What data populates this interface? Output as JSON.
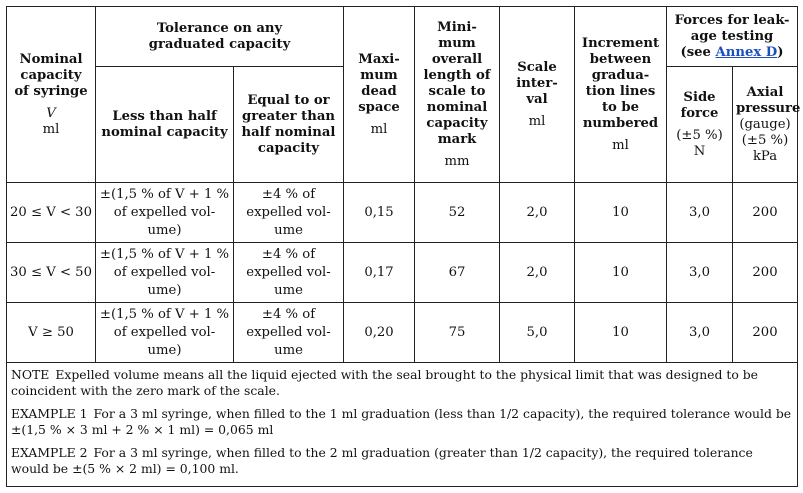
{
  "header": {
    "nominal": [
      "Nominal",
      "capacity",
      "of syringe"
    ],
    "nominal_v": "V",
    "nominal_unit": "ml",
    "tolerance_group": [
      "Tolerance on any",
      "graduated capacity"
    ],
    "less_half": [
      "Less than half",
      "nominal capacity"
    ],
    "equal_greater": [
      "Equal to or",
      "greater than",
      "half nominal",
      "capacity"
    ],
    "dead_space": [
      "Maxi-",
      "mum",
      "dead",
      "space"
    ],
    "dead_space_unit": "ml",
    "min_length": [
      "Mini-",
      "mum",
      "overall",
      "length of",
      "scale to",
      "nominal",
      "capacity",
      "mark"
    ],
    "min_length_unit": "mm",
    "scale_interval": [
      "Scale",
      "inter-",
      "val"
    ],
    "scale_interval_unit": "ml",
    "increment": [
      "Increment",
      "between",
      "gradua-",
      "tion lines",
      "to be",
      "numbered"
    ],
    "increment_unit": "ml",
    "forces_group": [
      "Forces for leak-",
      "age testing"
    ],
    "forces_see": "(see ",
    "forces_link": "Annex D",
    "forces_close": ")",
    "side_force": [
      "Side",
      "force"
    ],
    "side_force_tol": "(±5 %)",
    "side_force_unit": "N",
    "axial": [
      "Axial",
      "pressure"
    ],
    "axial_gauge": "(gauge)",
    "axial_tol": "(±5 %)",
    "axial_unit": "kPa"
  },
  "rows": [
    {
      "range": "20 ≤ V < 30",
      "less": [
        "±(1,5 % of V + 1 %",
        "of expelled vol-",
        "ume)"
      ],
      "equal": [
        "±4 % of",
        "expelled vol-",
        "ume"
      ],
      "dead_space": "0,15",
      "min_length": "52",
      "scale_interval": "2,0",
      "increment": "10",
      "side_force": "3,0",
      "axial": "200"
    },
    {
      "range": "30 ≤ V < 50",
      "less": [
        "±(1,5 % of V + 1 %",
        "of expelled vol-",
        "ume)"
      ],
      "equal": [
        "±4 % of",
        "expelled vol-",
        "ume"
      ],
      "dead_space": "0,17",
      "min_length": "67",
      "scale_interval": "2,0",
      "increment": "10",
      "side_force": "3,0",
      "axial": "200"
    },
    {
      "range": "V ≥ 50",
      "less": [
        "±(1,5 % of V + 1 %",
        "of expelled vol-",
        "ume)"
      ],
      "equal": [
        "±4 % of",
        "expelled vol-",
        "ume"
      ],
      "dead_space": "0,20",
      "min_length": "75",
      "scale_interval": "5,0",
      "increment": "10",
      "side_force": "3,0",
      "axial": "200"
    }
  ],
  "notes": {
    "note_label": "NOTE",
    "note_text": "Expelled volume means all the liquid ejected with the seal brought to the physical limit that was designed to be coincident with the zero mark of the scale.",
    "ex1_label": "EXAMPLE 1",
    "ex1_text": "For a 3 ml syringe, when filled to the 1 ml graduation (less than 1/2 capacity), the required tolerance would be ±(1,5 % × 3 ml + 2 % × 1 ml) = 0,065 ml",
    "ex2_label": "EXAMPLE 2",
    "ex2_text": "For a 3 ml syringe, when filled to the 2 ml graduation (greater than 1/2 capacity), the required tolerance would be ±(5 % × 2 ml) = 0,100 ml."
  }
}
